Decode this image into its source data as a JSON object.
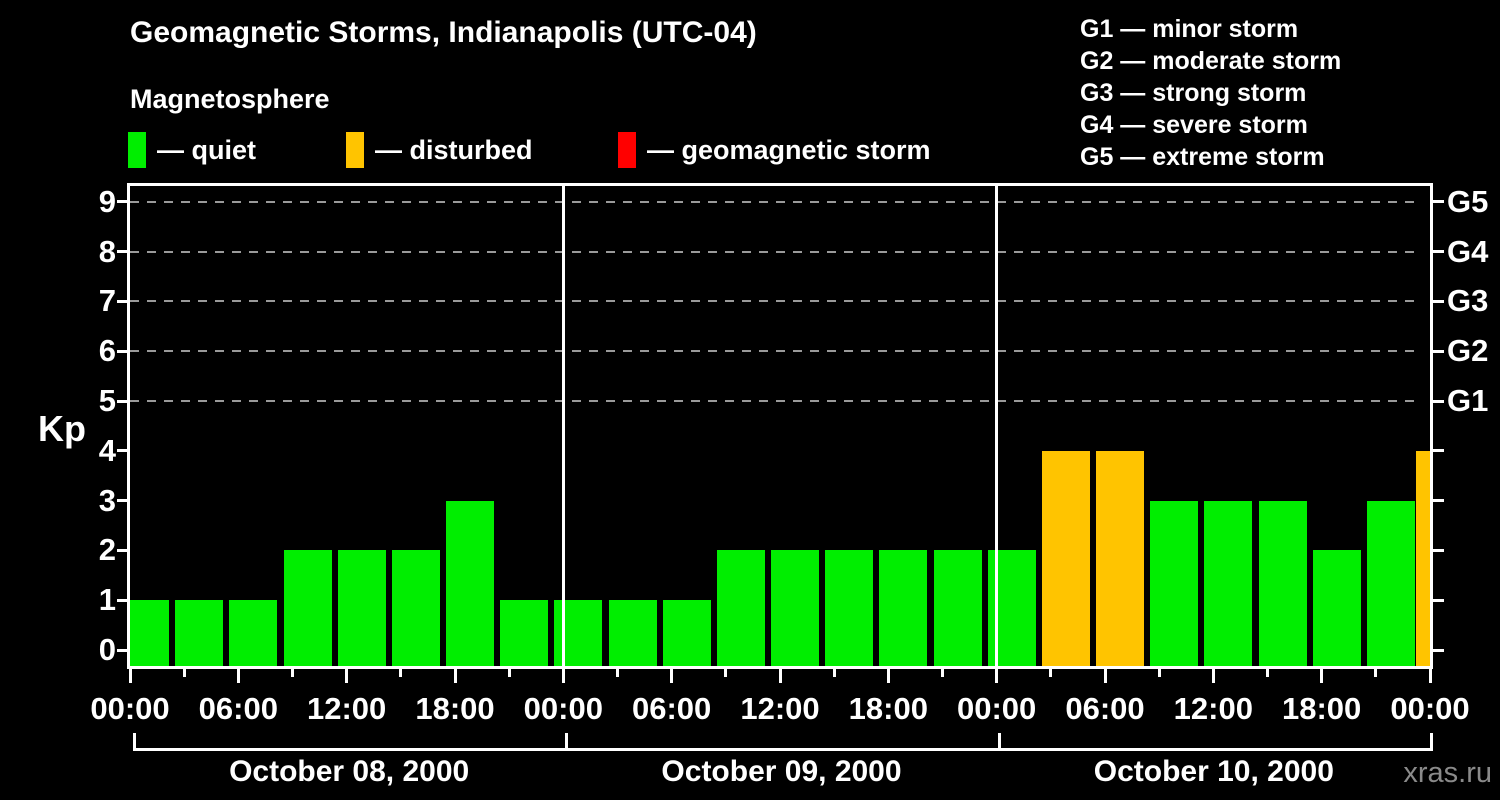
{
  "title": "Geomagnetic Storms, Indianapolis (UTC-04)",
  "subtitle": "Magnetosphere",
  "kp_axis_label": "Kp",
  "watermark": "xras.ru",
  "legend": {
    "items": [
      {
        "label": "— quiet",
        "color": "#00EE00"
      },
      {
        "label": "— disturbed",
        "color": "#FFC400"
      },
      {
        "label": "— geomagnetic storm",
        "color": "#FF0000"
      }
    ]
  },
  "g_scale_legend": {
    "lines": [
      "G1 — minor storm",
      "G2 — moderate storm",
      "G3 — strong storm",
      "G4 — severe storm",
      "G5 — extreme storm"
    ]
  },
  "chart_data": {
    "type": "bar",
    "title": "Geomagnetic Storms, Indianapolis (UTC-04)",
    "subtitle": "Magnetosphere",
    "ylabel": "Kp",
    "ylim": [
      0,
      9.5
    ],
    "yticks": [
      0,
      1,
      2,
      3,
      4,
      5,
      6,
      7,
      8,
      9
    ],
    "grid": "dashed horizontal at Kp 5-9 only",
    "gridlines_at": [
      5,
      6,
      7,
      8,
      9
    ],
    "right_axis_labels": [
      {
        "kp": 5,
        "label": "G1"
      },
      {
        "kp": 6,
        "label": "G2"
      },
      {
        "kp": 7,
        "label": "G3"
      },
      {
        "kp": 8,
        "label": "G4"
      },
      {
        "kp": 9,
        "label": "G5"
      }
    ],
    "bar_interval_hours": 3,
    "days": [
      {
        "date": "October 08, 2000",
        "kp": [
          1,
          1,
          1,
          2,
          2,
          2,
          3,
          1
        ]
      },
      {
        "date": "October 09, 2000",
        "kp": [
          1,
          1,
          1,
          2,
          2,
          2,
          2,
          2
        ]
      },
      {
        "date": "October 10, 2000",
        "kp": [
          2,
          4,
          4,
          3,
          3,
          3,
          2,
          3
        ]
      }
    ],
    "trailing_partial_bar_kp": 4,
    "x_tick_labels": [
      "00:00",
      "06:00",
      "12:00",
      "18:00",
      "00:00",
      "06:00",
      "12:00",
      "18:00",
      "00:00",
      "06:00",
      "12:00",
      "18:00",
      "00:00"
    ],
    "colors": {
      "quiet": "#00EE00",
      "disturbed": "#FFC400",
      "storm": "#FF0000",
      "grid": "#9a9a9a",
      "axis": "#ffffff",
      "background": "#000000"
    },
    "color_rule": {
      "quiet_kp_max": 3,
      "disturbed_kp": 4,
      "storm_kp_min": 5
    },
    "legend_position": "top-left (kp colors) and top-right (G scale)"
  }
}
